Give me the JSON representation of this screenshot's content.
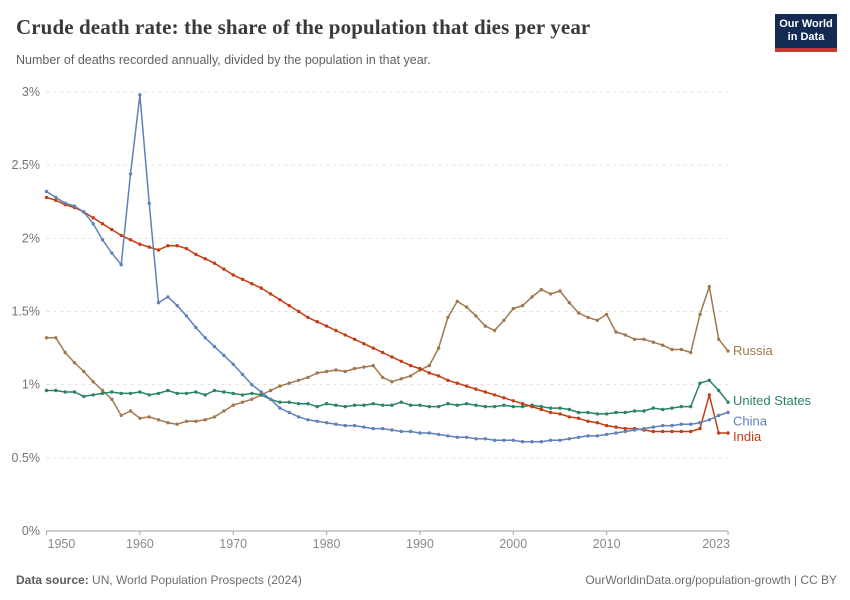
{
  "header": {
    "title": "Crude death rate: the share of the population that dies per year",
    "subtitle": "Number of deaths recorded annually, divided by the population in that year.",
    "logo": {
      "line1": "Our World",
      "line2": "in Data"
    }
  },
  "footer": {
    "source_label": "Data source:",
    "source_text": " UN, World Population Prospects (2024)",
    "attribution": "OurWorldinData.org/population-growth | CC BY"
  },
  "chart_data": {
    "type": "line",
    "title": "Crude death rate: the share of the population that dies per year",
    "xlabel": "",
    "ylabel": "",
    "ylim": [
      0,
      3
    ],
    "grid": "horizontal-dashed",
    "legend_position": "end-of-line-labels",
    "colors": {
      "gridline": "#e0e0e0",
      "axis": "#a6a6a6",
      "y_tick_text": "#737373",
      "x_tick_text": "#8a8a8a"
    },
    "y_ticks": [
      {
        "value": 0,
        "label": "0%"
      },
      {
        "value": 0.5,
        "label": "0.5%"
      },
      {
        "value": 1,
        "label": "1%"
      },
      {
        "value": 1.5,
        "label": "1.5%"
      },
      {
        "value": 2,
        "label": "2%"
      },
      {
        "value": 2.5,
        "label": "2.5%"
      },
      {
        "value": 3,
        "label": "3%"
      }
    ],
    "x_ticks": [
      {
        "value": 1950,
        "label": "1950"
      },
      {
        "value": 1960,
        "label": "1960"
      },
      {
        "value": 1970,
        "label": "1970"
      },
      {
        "value": 1980,
        "label": "1980"
      },
      {
        "value": 1990,
        "label": "1990"
      },
      {
        "value": 2000,
        "label": "2000"
      },
      {
        "value": 2010,
        "label": "2010"
      },
      {
        "value": 2023,
        "label": "2023"
      }
    ],
    "years": [
      1950,
      1951,
      1952,
      1953,
      1954,
      1955,
      1956,
      1957,
      1958,
      1959,
      1960,
      1961,
      1962,
      1963,
      1964,
      1965,
      1966,
      1967,
      1968,
      1969,
      1970,
      1971,
      1972,
      1973,
      1974,
      1975,
      1976,
      1977,
      1978,
      1979,
      1980,
      1981,
      1982,
      1983,
      1984,
      1985,
      1986,
      1987,
      1988,
      1989,
      1990,
      1991,
      1992,
      1993,
      1994,
      1995,
      1996,
      1997,
      1998,
      1999,
      2000,
      2001,
      2002,
      2003,
      2004,
      2005,
      2006,
      2007,
      2008,
      2009,
      2010,
      2011,
      2012,
      2013,
      2014,
      2015,
      2016,
      2017,
      2018,
      2019,
      2020,
      2021,
      2022,
      2023
    ],
    "series": [
      {
        "name": "Russia",
        "color": "#A1794E",
        "label_offset_y": 0,
        "values": [
          1.32,
          1.32,
          1.22,
          1.15,
          1.09,
          1.02,
          0.96,
          0.9,
          0.79,
          0.82,
          0.77,
          0.78,
          0.76,
          0.74,
          0.73,
          0.75,
          0.75,
          0.76,
          0.78,
          0.82,
          0.86,
          0.88,
          0.9,
          0.93,
          0.96,
          0.99,
          1.01,
          1.03,
          1.05,
          1.08,
          1.09,
          1.1,
          1.09,
          1.11,
          1.12,
          1.13,
          1.05,
          1.02,
          1.04,
          1.06,
          1.1,
          1.13,
          1.25,
          1.46,
          1.57,
          1.53,
          1.47,
          1.4,
          1.37,
          1.44,
          1.52,
          1.54,
          1.6,
          1.65,
          1.62,
          1.64,
          1.56,
          1.49,
          1.46,
          1.44,
          1.48,
          1.36,
          1.34,
          1.31,
          1.31,
          1.29,
          1.27,
          1.24,
          1.24,
          1.22,
          1.48,
          1.67,
          1.31,
          1.23
        ]
      },
      {
        "name": "United States",
        "color": "#2C8465",
        "label_offset_y": -1,
        "values": [
          0.96,
          0.96,
          0.95,
          0.95,
          0.92,
          0.93,
          0.94,
          0.95,
          0.94,
          0.94,
          0.95,
          0.93,
          0.94,
          0.96,
          0.94,
          0.94,
          0.95,
          0.93,
          0.96,
          0.95,
          0.94,
          0.93,
          0.94,
          0.93,
          0.9,
          0.88,
          0.88,
          0.87,
          0.87,
          0.85,
          0.87,
          0.86,
          0.85,
          0.86,
          0.86,
          0.87,
          0.86,
          0.86,
          0.88,
          0.86,
          0.86,
          0.85,
          0.85,
          0.87,
          0.86,
          0.87,
          0.86,
          0.85,
          0.85,
          0.86,
          0.85,
          0.85,
          0.86,
          0.85,
          0.84,
          0.84,
          0.83,
          0.81,
          0.81,
          0.8,
          0.8,
          0.81,
          0.81,
          0.82,
          0.82,
          0.84,
          0.83,
          0.84,
          0.85,
          0.85,
          1.01,
          1.03,
          0.96,
          0.88
        ]
      },
      {
        "name": "China",
        "color": "#6082B9",
        "label_offset_y": 9,
        "values": [
          2.32,
          2.28,
          2.24,
          2.22,
          2.18,
          2.1,
          1.99,
          1.9,
          1.82,
          2.44,
          2.98,
          2.24,
          1.56,
          1.6,
          1.54,
          1.47,
          1.39,
          1.32,
          1.26,
          1.2,
          1.14,
          1.07,
          1.0,
          0.95,
          0.9,
          0.84,
          0.81,
          0.78,
          0.76,
          0.75,
          0.74,
          0.73,
          0.72,
          0.72,
          0.71,
          0.7,
          0.7,
          0.69,
          0.68,
          0.68,
          0.67,
          0.67,
          0.66,
          0.65,
          0.64,
          0.64,
          0.63,
          0.63,
          0.62,
          0.62,
          0.62,
          0.61,
          0.61,
          0.61,
          0.62,
          0.62,
          0.63,
          0.64,
          0.65,
          0.65,
          0.66,
          0.67,
          0.68,
          0.69,
          0.7,
          0.71,
          0.72,
          0.72,
          0.73,
          0.73,
          0.74,
          0.76,
          0.79,
          0.81
        ]
      },
      {
        "name": "India",
        "color": "#C43D12",
        "label_offset_y": 4,
        "values": [
          2.28,
          2.26,
          2.23,
          2.21,
          2.18,
          2.14,
          2.1,
          2.06,
          2.02,
          1.99,
          1.96,
          1.94,
          1.92,
          1.95,
          1.95,
          1.93,
          1.89,
          1.86,
          1.83,
          1.79,
          1.75,
          1.72,
          1.69,
          1.66,
          1.62,
          1.58,
          1.54,
          1.5,
          1.46,
          1.43,
          1.4,
          1.37,
          1.34,
          1.31,
          1.28,
          1.25,
          1.22,
          1.19,
          1.16,
          1.13,
          1.11,
          1.08,
          1.06,
          1.03,
          1.01,
          0.99,
          0.97,
          0.95,
          0.93,
          0.91,
          0.89,
          0.87,
          0.85,
          0.83,
          0.81,
          0.8,
          0.78,
          0.77,
          0.75,
          0.74,
          0.72,
          0.71,
          0.7,
          0.7,
          0.69,
          0.68,
          0.68,
          0.68,
          0.68,
          0.68,
          0.7,
          0.93,
          0.67,
          0.67
        ]
      }
    ]
  }
}
